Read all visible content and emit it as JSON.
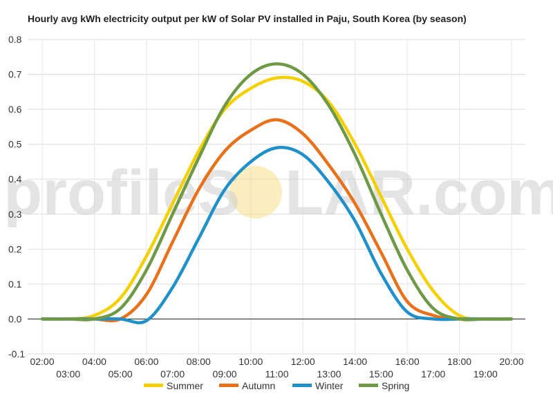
{
  "chart_data": {
    "type": "line",
    "title": "Hourly avg kWh electricity output per kW of Solar PV installed in Paju, South Korea (by season)",
    "xlabel": "",
    "ylabel": "",
    "x": [
      "02:00",
      "03:00",
      "04:00",
      "05:00",
      "06:00",
      "07:00",
      "08:00",
      "09:00",
      "10:00",
      "11:00",
      "12:00",
      "13:00",
      "14:00",
      "15:00",
      "16:00",
      "17:00",
      "18:00",
      "19:00",
      "20:00"
    ],
    "ylim": [
      -0.1,
      0.8
    ],
    "yticks": [
      "-0.1",
      "0.0",
      "0.1",
      "0.2",
      "0.3",
      "0.4",
      "0.5",
      "0.6",
      "0.7",
      "0.8"
    ],
    "grid": true,
    "legend_position": "bottom",
    "series": [
      {
        "name": "Summer",
        "color": "#F5D000",
        "values": [
          0.0,
          0.0,
          0.01,
          0.06,
          0.18,
          0.33,
          0.48,
          0.6,
          0.66,
          0.69,
          0.68,
          0.62,
          0.5,
          0.35,
          0.2,
          0.08,
          0.01,
          0.0,
          0.0
        ]
      },
      {
        "name": "Autumn",
        "color": "#E8711A",
        "values": [
          0.0,
          0.0,
          0.0,
          0.0,
          0.07,
          0.22,
          0.37,
          0.48,
          0.54,
          0.57,
          0.53,
          0.44,
          0.33,
          0.19,
          0.05,
          0.01,
          0.0,
          0.0,
          0.0
        ]
      },
      {
        "name": "Winter",
        "color": "#2090C8",
        "values": [
          0.0,
          0.0,
          0.0,
          0.0,
          -0.005,
          0.09,
          0.23,
          0.37,
          0.45,
          0.49,
          0.47,
          0.39,
          0.28,
          0.13,
          0.02,
          0.0,
          0.0,
          0.0,
          0.0
        ]
      },
      {
        "name": "Spring",
        "color": "#6E9A48",
        "values": [
          0.0,
          0.0,
          0.0,
          0.03,
          0.14,
          0.3,
          0.46,
          0.61,
          0.7,
          0.73,
          0.7,
          0.61,
          0.47,
          0.3,
          0.14,
          0.03,
          0.0,
          0.0,
          0.0
        ]
      }
    ]
  },
  "watermark": {
    "text_left": "profileS",
    "text_right": "LAR.com",
    "sun_color": "#F5E08A"
  }
}
